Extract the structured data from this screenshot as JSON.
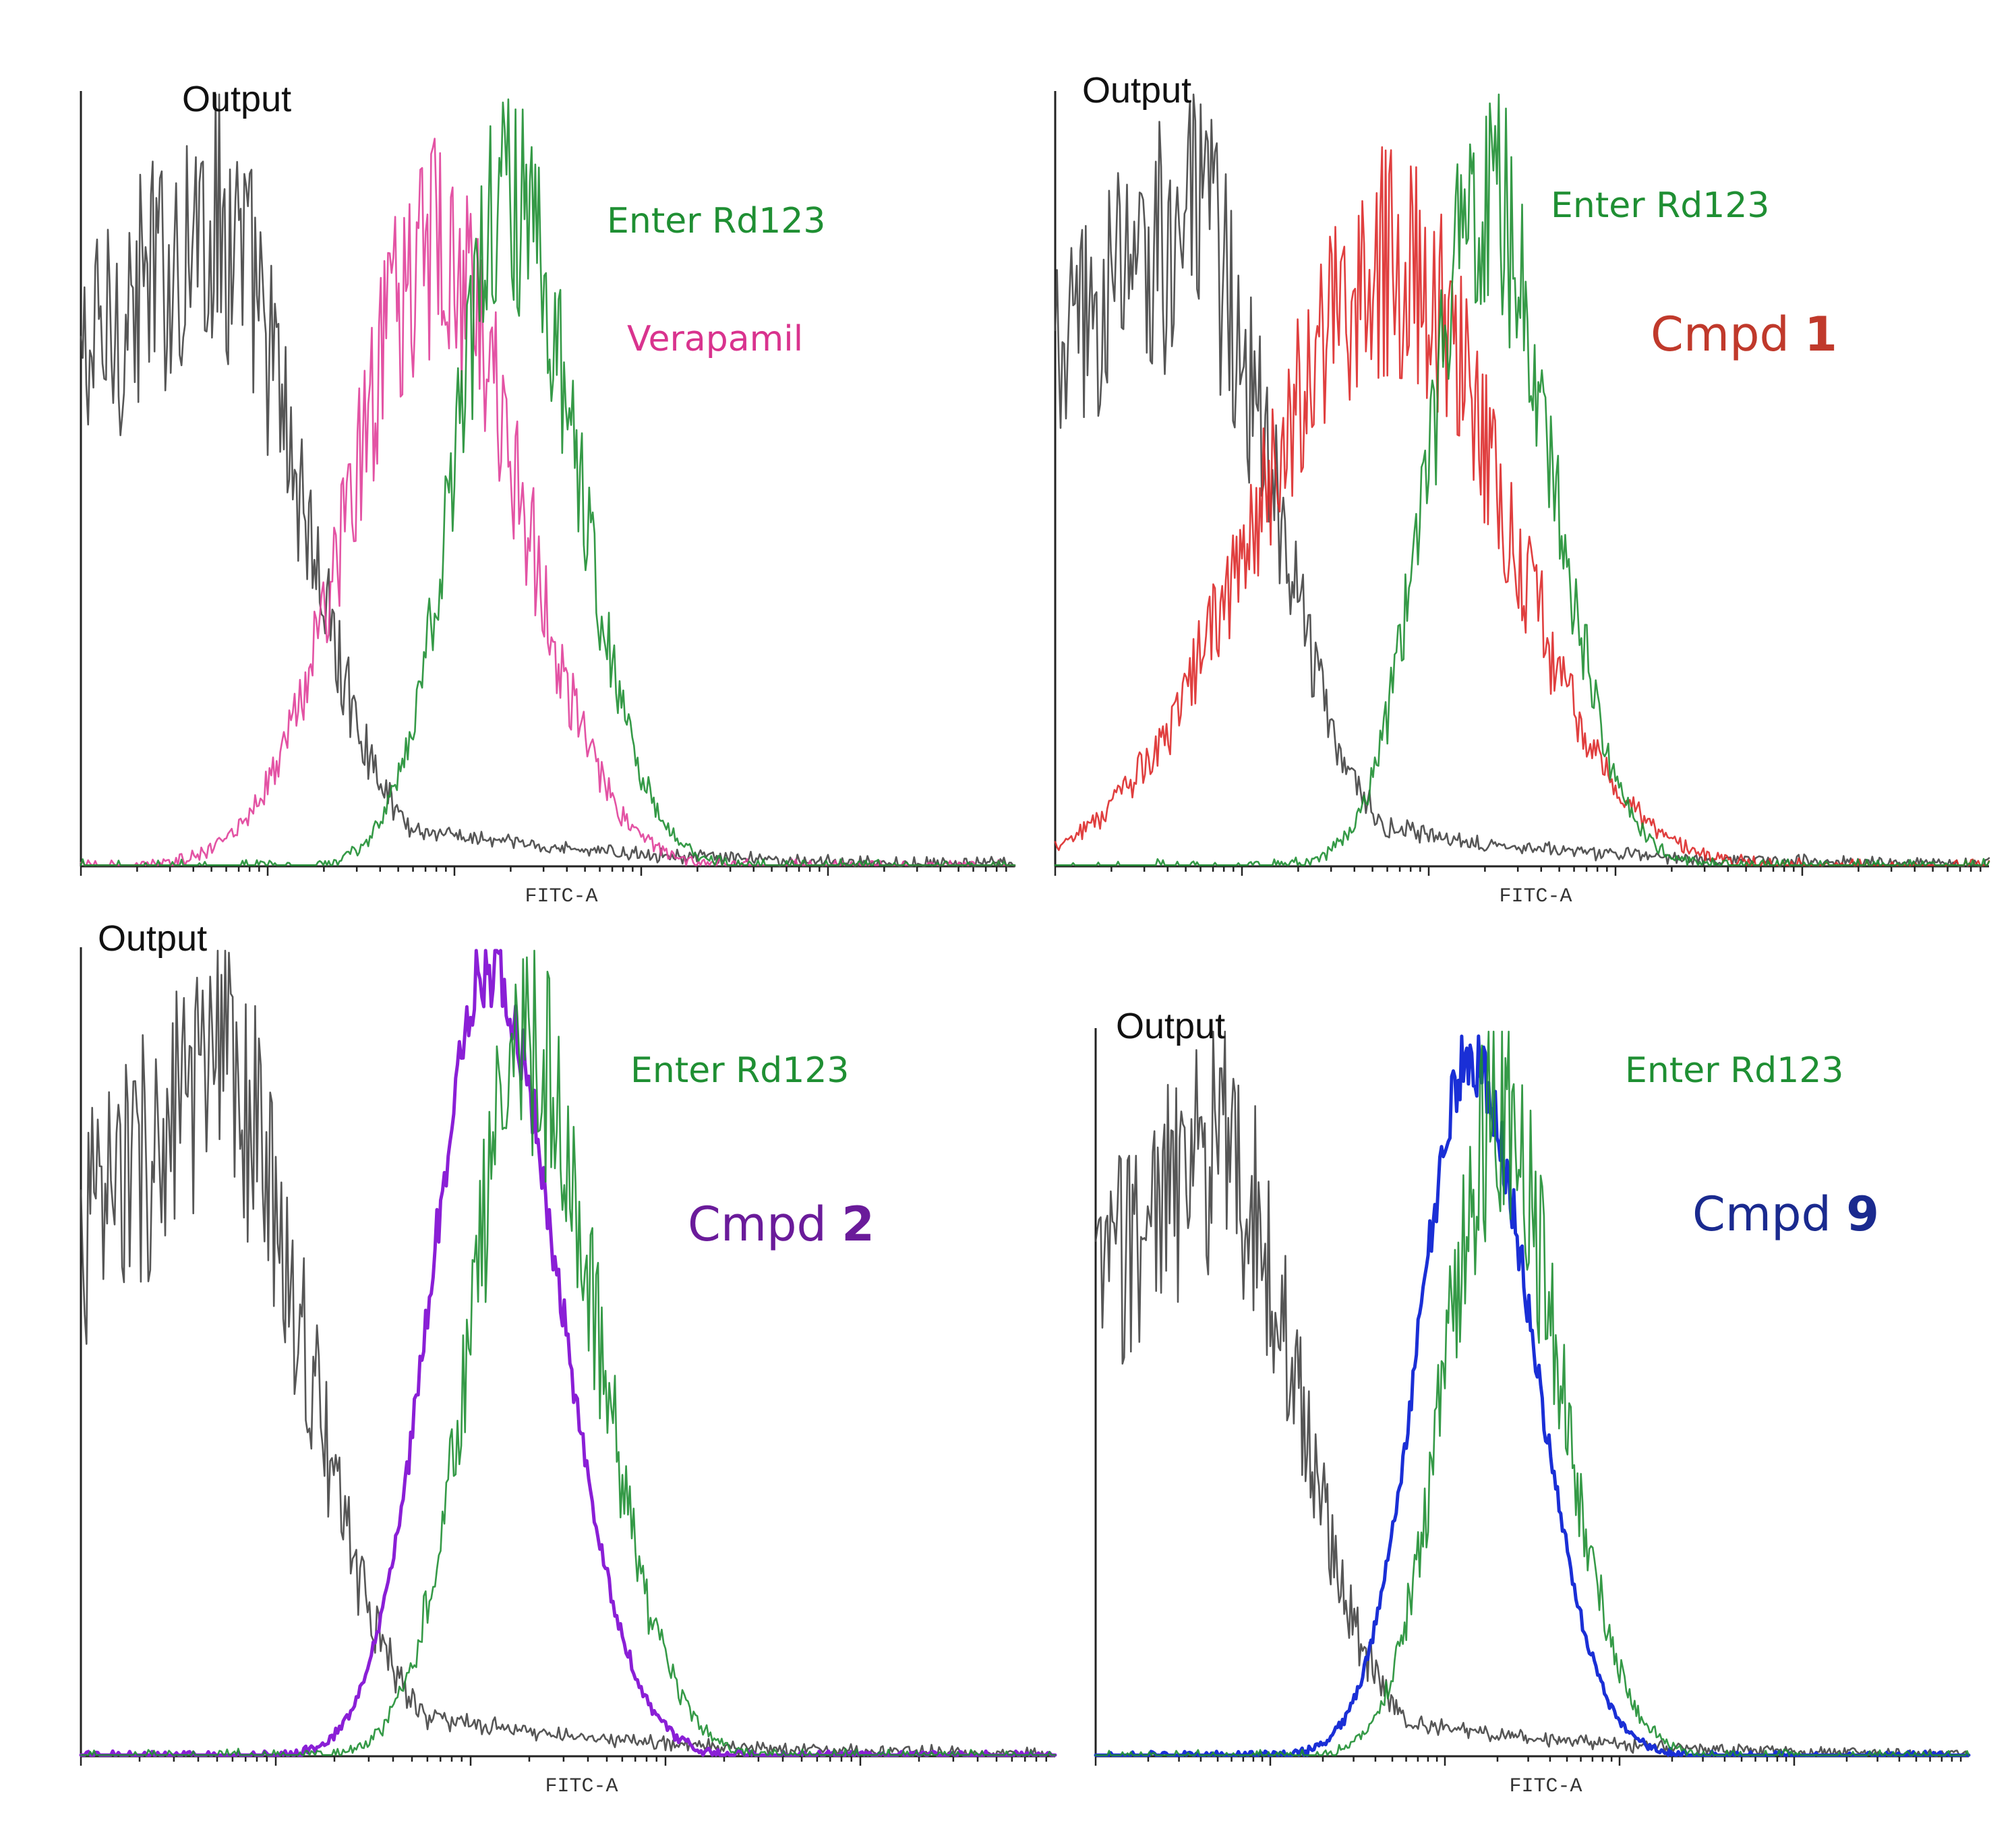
{
  "chart_data": [
    {
      "type": "line",
      "panel": "top-left",
      "title": "",
      "xlabel": "FITC-A",
      "ylabel": "Output",
      "xlim": [
        0,
        100
      ],
      "ylim": [
        0,
        100
      ],
      "grid": false,
      "series": [
        {
          "name": "Output",
          "label": "Output",
          "color": "#444444",
          "peak_x": 14,
          "peak_y": 84,
          "width_left": 11,
          "width_right": 9,
          "tail": true,
          "noise": 0.22,
          "label_shown": false
        },
        {
          "name": "Verapamil",
          "label": "Verapamil",
          "color": "#e0409a",
          "peak_x": 38,
          "peak_y": 80,
          "width_left": 9,
          "width_right": 9,
          "noise": 0.2
        },
        {
          "name": "Enter Rd123",
          "label": "Enter Rd123",
          "color": "#1f8f33",
          "peak_x": 46,
          "peak_y": 88,
          "width_left": 6,
          "width_right": 7,
          "noise": 0.18
        }
      ],
      "legend": [
        {
          "text": "Enter Rd123",
          "color": "#1f8f33",
          "size": "normal"
        },
        {
          "text": "Verapamil",
          "color": "#d9338e",
          "size": "normal"
        }
      ]
    },
    {
      "type": "line",
      "panel": "top-right",
      "title": "",
      "xlabel": "FITC-A",
      "ylabel": "Output",
      "xlim": [
        0,
        100
      ],
      "ylim": [
        0,
        100
      ],
      "grid": false,
      "series": [
        {
          "name": "Output",
          "label": "Output",
          "color": "#444444",
          "peak_x": 14,
          "peak_y": 84,
          "width_left": 11,
          "width_right": 9,
          "tail": true,
          "noise": 0.22,
          "label_shown": false
        },
        {
          "name": "Cmpd 1",
          "label": "Cmpd 1",
          "color": "#dd2a2a",
          "peak_x": 36,
          "peak_y": 78,
          "width_left": 14,
          "width_right": 12,
          "noise": 0.2
        },
        {
          "name": "Enter Rd123",
          "label": "Enter Rd123",
          "color": "#1f8f33",
          "peak_x": 46,
          "peak_y": 88,
          "width_left": 6,
          "width_right": 7,
          "noise": 0.18
        }
      ],
      "legend": [
        {
          "text": "Enter Rd123",
          "color": "#1f8f33",
          "size": "normal"
        },
        {
          "text": "Cmpd",
          "number": "1",
          "color": "#c0392b",
          "size": "big"
        }
      ]
    },
    {
      "type": "line",
      "panel": "bottom-left",
      "title": "",
      "xlabel": "FITC-A",
      "ylabel": "Output",
      "xlim": [
        0,
        100
      ],
      "ylim": [
        0,
        100
      ],
      "grid": false,
      "series": [
        {
          "name": "Output",
          "label": "Output",
          "color": "#444444",
          "peak_x": 14,
          "peak_y": 84,
          "width_left": 11,
          "width_right": 9,
          "tail": true,
          "noise": 0.22,
          "label_shown": false
        },
        {
          "name": "Cmpd 2",
          "label": "Cmpd 2",
          "color": "#8a1fd6",
          "peak_x": 42,
          "peak_y": 98,
          "width_left": 6,
          "width_right": 7,
          "noise": 0.05
        },
        {
          "name": "Enter Rd123",
          "label": "Enter Rd123",
          "color": "#1f8f33",
          "peak_x": 46,
          "peak_y": 88,
          "width_left": 6,
          "width_right": 7,
          "noise": 0.18
        }
      ],
      "legend": [
        {
          "text": "Enter Rd123",
          "color": "#1f8f33",
          "size": "normal"
        },
        {
          "text": "Cmpd",
          "number": "2",
          "color": "#6a1b9a",
          "size": "big"
        }
      ]
    },
    {
      "type": "line",
      "panel": "bottom-right",
      "title": "",
      "xlabel": "FITC-A",
      "ylabel": "Output",
      "xlim": [
        0,
        100
      ],
      "ylim": [
        0,
        100
      ],
      "grid": false,
      "series": [
        {
          "name": "Output",
          "label": "Output",
          "color": "#444444",
          "peak_x": 14,
          "peak_y": 84,
          "width_left": 11,
          "width_right": 9,
          "tail": true,
          "noise": 0.22,
          "label_shown": false
        },
        {
          "name": "Cmpd 9",
          "label": "Cmpd 9",
          "color": "#1a2fd6",
          "peak_x": 43,
          "peak_y": 96,
          "width_left": 6,
          "width_right": 7,
          "noise": 0.05
        },
        {
          "name": "Enter Rd123",
          "label": "Enter Rd123",
          "color": "#1f8f33",
          "peak_x": 46,
          "peak_y": 88,
          "width_left": 6,
          "width_right": 7,
          "noise": 0.18
        }
      ],
      "legend": [
        {
          "text": "Enter Rd123",
          "color": "#1f8f33",
          "size": "normal"
        },
        {
          "text": "Cmpd",
          "number": "9",
          "color": "#1a2a8f",
          "size": "big"
        }
      ]
    }
  ]
}
